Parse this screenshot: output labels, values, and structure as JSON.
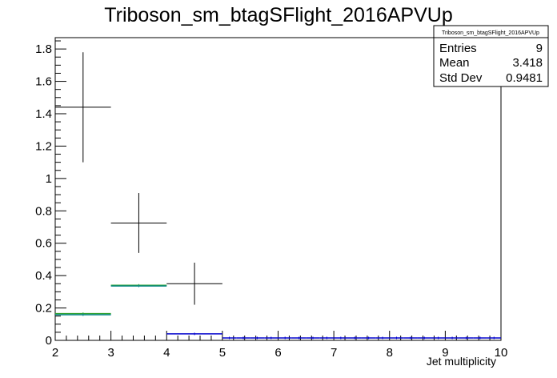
{
  "chart_data": {
    "type": "histogram",
    "title": "Triboson_sm_btagSFlight_2016APVUp",
    "xlabel": "Jet multiplicity",
    "ylabel": "",
    "xlim": [
      2,
      10
    ],
    "ylim": [
      0,
      1.87
    ],
    "x_ticks": [
      "2",
      "3",
      "4",
      "5",
      "6",
      "7",
      "8",
      "9",
      "10"
    ],
    "y_ticks": [
      "0",
      "0.2",
      "0.4",
      "0.6",
      "0.8",
      "1",
      "1.2",
      "1.4",
      "1.6",
      "1.8"
    ],
    "grid": false,
    "stats_box": {
      "title": "Triboson_sm_btagSFlight_2016APVUp",
      "rows": [
        {
          "label": "Entries",
          "value": "9"
        },
        {
          "label": "Mean",
          "value": "3.418"
        },
        {
          "label": "Std Dev",
          "value": "0.9481"
        }
      ]
    },
    "series": [
      {
        "style": "errorbar",
        "color": "#000000",
        "bins": [
          {
            "x_low": 2,
            "x_high": 3,
            "y": 1.44,
            "y_low": 1.1,
            "y_high": 1.78
          },
          {
            "x_low": 3,
            "x_high": 4,
            "y": 0.725,
            "y_low": 0.54,
            "y_high": 0.91
          },
          {
            "x_low": 4,
            "x_high": 5,
            "y": 0.35,
            "y_low": 0.22,
            "y_high": 0.48
          }
        ]
      },
      {
        "style": "step",
        "color": "#2ca02c",
        "bins": [
          {
            "x_low": 2,
            "x_high": 3,
            "y": 0.165
          },
          {
            "x_low": 3,
            "x_high": 4,
            "y": 0.34
          }
        ]
      },
      {
        "style": "step",
        "color": "#0d8a8a",
        "bins": [
          {
            "x_low": 2,
            "x_high": 3,
            "y": 0.158
          },
          {
            "x_low": 3,
            "x_high": 4,
            "y": 0.336
          }
        ]
      },
      {
        "style": "step",
        "color": "#0000cc",
        "bins": [
          {
            "x_low": 4,
            "x_high": 5,
            "y": 0.04
          },
          {
            "x_low": 5,
            "x_high": 5.25,
            "y": 0.015
          },
          {
            "x_low": 5.25,
            "x_high": 5.5,
            "y": 0.015
          },
          {
            "x_low": 5.5,
            "x_high": 5.75,
            "y": 0.015
          },
          {
            "x_low": 5.75,
            "x_high": 6,
            "y": 0.015
          },
          {
            "x_low": 6,
            "x_high": 6.25,
            "y": 0.015
          },
          {
            "x_low": 6.25,
            "x_high": 6.5,
            "y": 0.015
          },
          {
            "x_low": 6.5,
            "x_high": 6.75,
            "y": 0.015
          },
          {
            "x_low": 6.75,
            "x_high": 7,
            "y": 0.015
          },
          {
            "x_low": 7,
            "x_high": 7.25,
            "y": 0.015
          },
          {
            "x_low": 7.25,
            "x_high": 7.5,
            "y": 0.015
          },
          {
            "x_low": 7.5,
            "x_high": 7.75,
            "y": 0.015
          },
          {
            "x_low": 7.75,
            "x_high": 8,
            "y": 0.015
          },
          {
            "x_low": 8,
            "x_high": 8.25,
            "y": 0.015
          },
          {
            "x_low": 8.25,
            "x_high": 8.5,
            "y": 0.015
          },
          {
            "x_low": 8.5,
            "x_high": 8.75,
            "y": 0.015
          },
          {
            "x_low": 8.75,
            "x_high": 9,
            "y": 0.015
          },
          {
            "x_low": 9,
            "x_high": 9.25,
            "y": 0.015
          },
          {
            "x_low": 9.25,
            "x_high": 9.5,
            "y": 0.015
          },
          {
            "x_low": 9.5,
            "x_high": 9.75,
            "y": 0.015
          },
          {
            "x_low": 9.75,
            "x_high": 10,
            "y": 0.015
          }
        ]
      }
    ]
  }
}
